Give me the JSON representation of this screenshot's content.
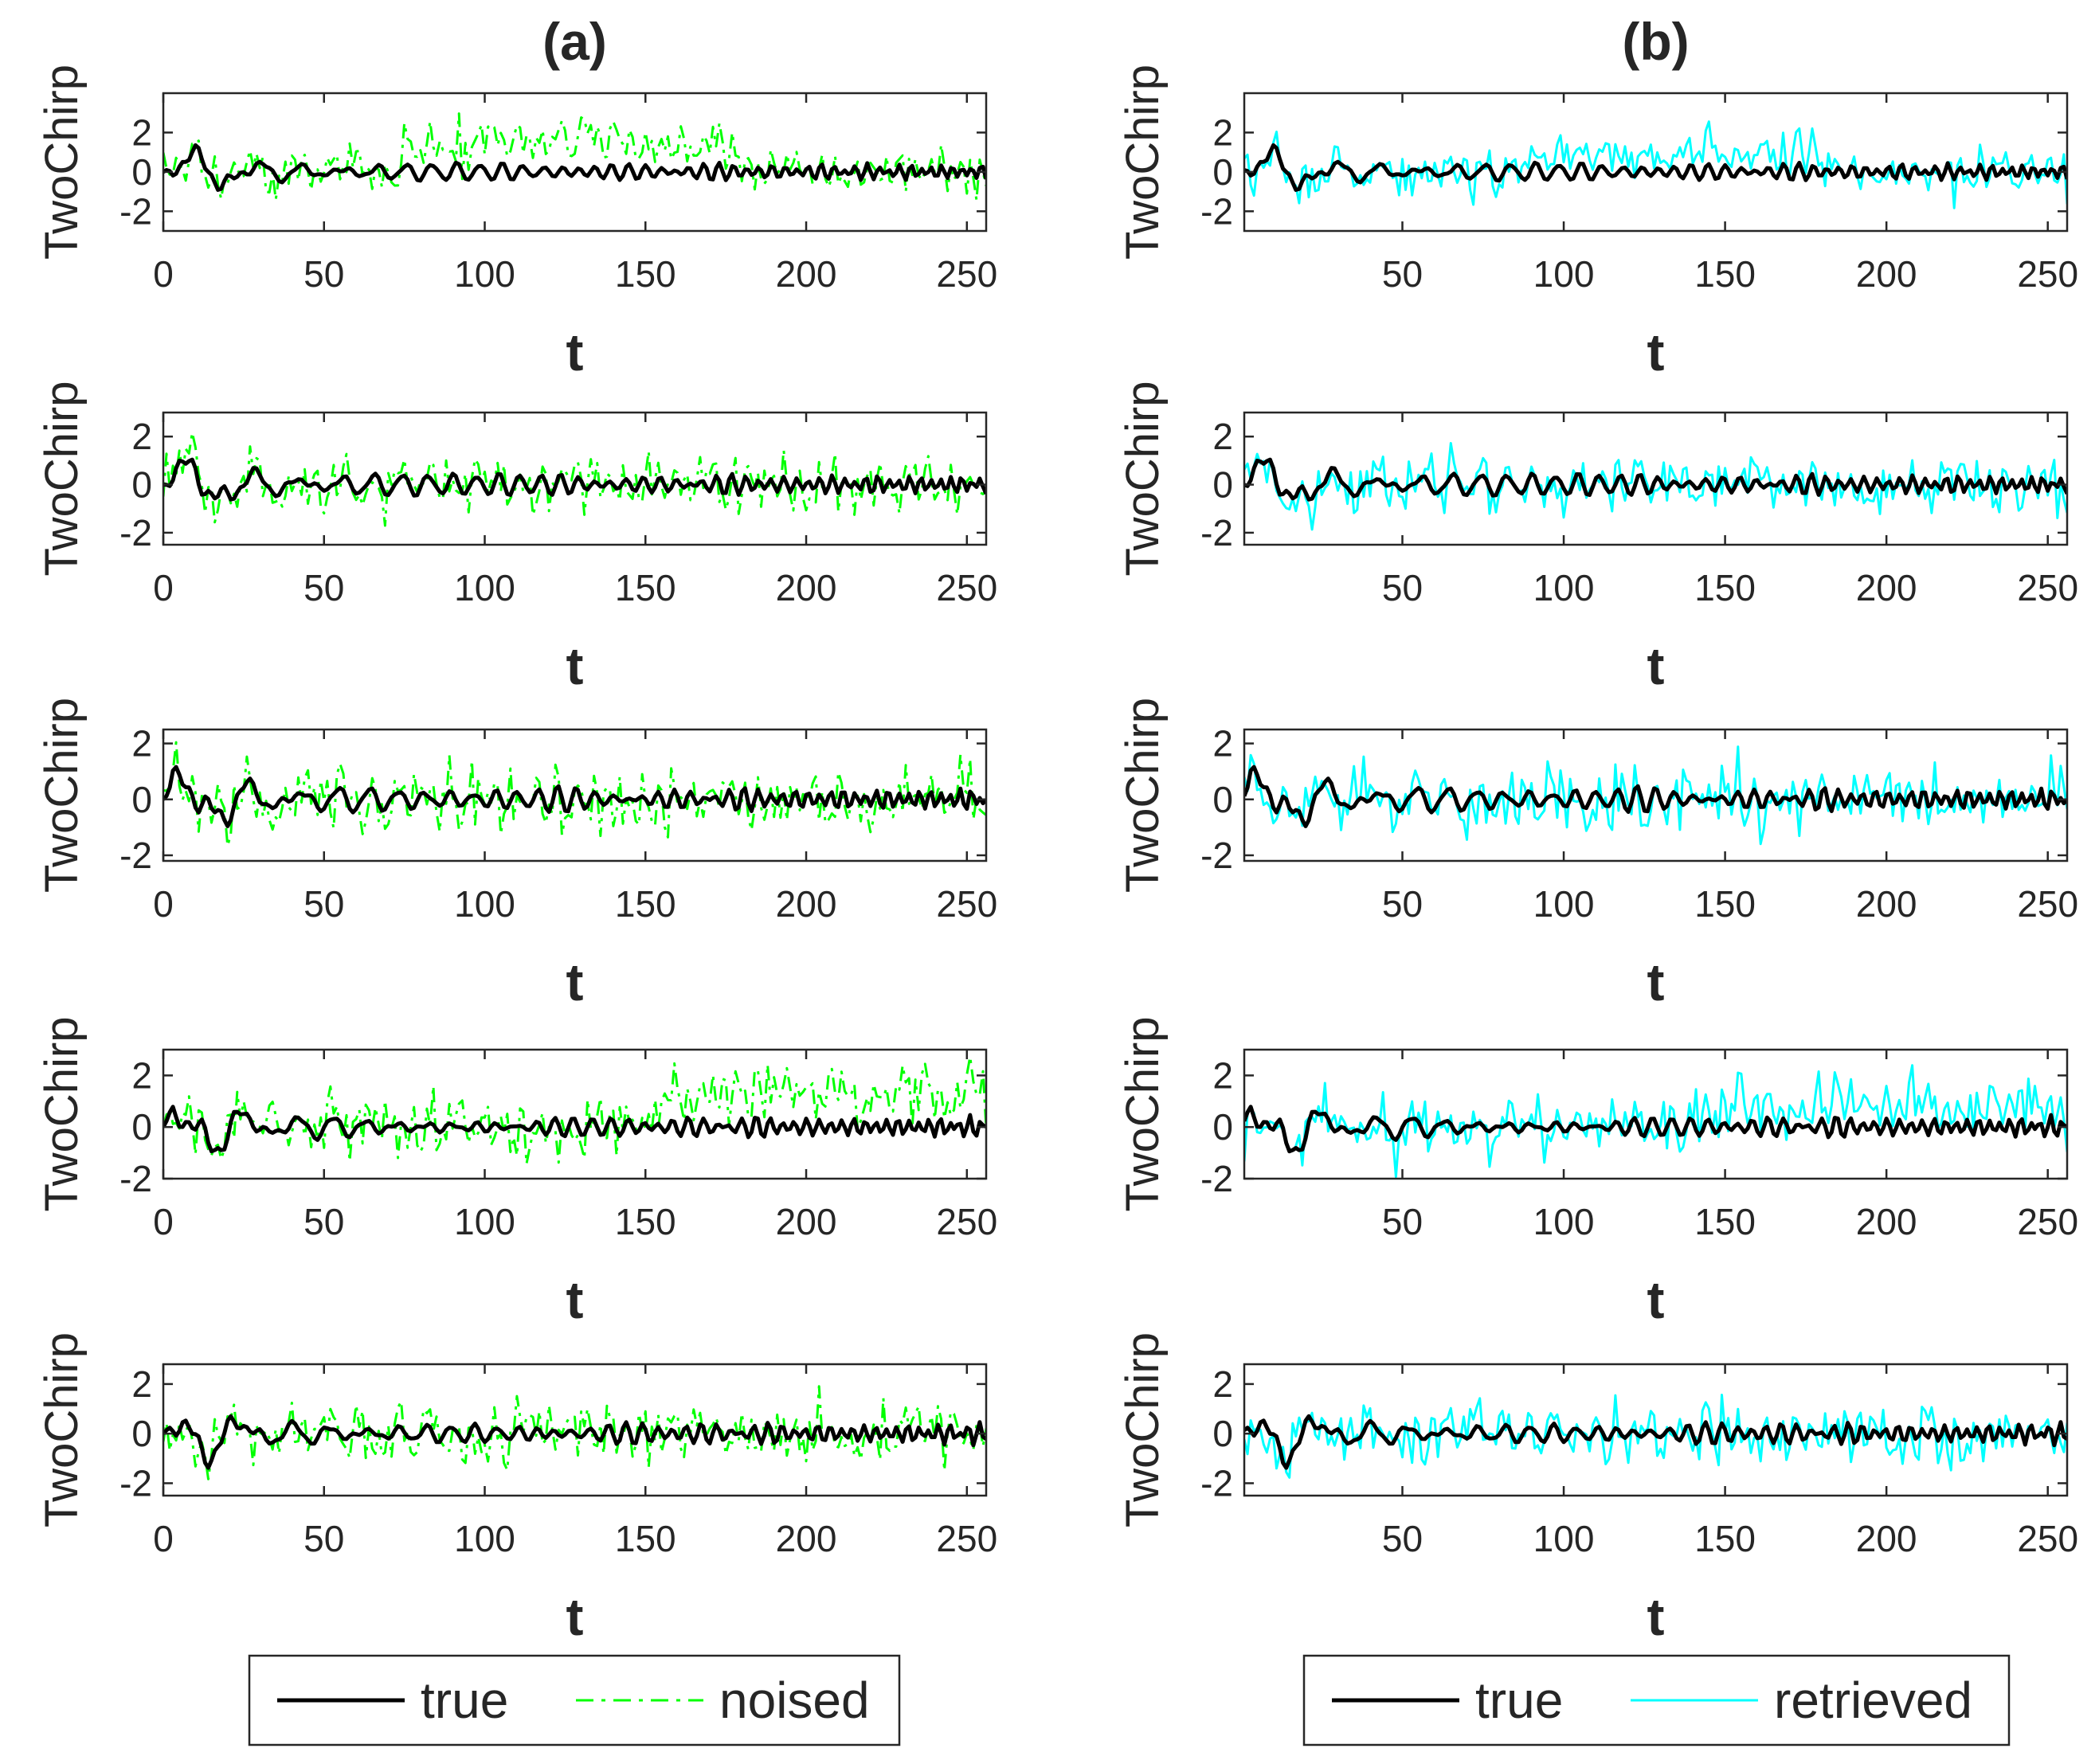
{
  "chart_data": {
    "type": "line",
    "panels": [
      {
        "title": "(a)",
        "legend": [
          {
            "name": "true",
            "color": "#000000",
            "style": "solid"
          },
          {
            "name": "noised",
            "color": "#00ff00",
            "style": "dash-dot"
          }
        ],
        "subplots": [
          {
            "ylabel": "TwoChirp",
            "xlabel": "t",
            "xlim": [
              0,
              256
            ],
            "ylim": [
              -3,
              4
            ],
            "yticks": [
              "-2",
              "0",
              "2"
            ],
            "xticks": [
              "0",
              "50",
              "100",
              "150",
              "200",
              "250"
            ],
            "true_seed": 11,
            "other_seed": 21,
            "other_offset": [
              [
                0,
                75,
                0
              ],
              [
                75,
                100,
                1.2
              ],
              [
                100,
                145,
                1.7
              ],
              [
                145,
                178,
                1.3
              ],
              [
                178,
                256,
                0
              ]
            ]
          },
          {
            "ylabel": "TwoChirp",
            "xlabel": "t",
            "xlim": [
              0,
              256
            ],
            "ylim": [
              -2.5,
              3
            ],
            "yticks": [
              "-2",
              "0",
              "2"
            ],
            "xticks": [
              "0",
              "50",
              "100",
              "150",
              "200",
              "250"
            ],
            "true_seed": 12,
            "other_seed": 22,
            "other_offset": [
              [
                0,
                256,
                0
              ]
            ]
          },
          {
            "ylabel": "TwoChirp",
            "xlabel": "t",
            "xlim": [
              0,
              256
            ],
            "ylim": [
              -2.2,
              2.5
            ],
            "yticks": [
              "-2",
              "0",
              "2"
            ],
            "xticks": [
              "0",
              "50",
              "100",
              "150",
              "200",
              "250"
            ],
            "true_seed": 13,
            "other_seed": 23,
            "other_offset": [
              [
                0,
                256,
                0
              ]
            ]
          },
          {
            "ylabel": "TwoChirp",
            "xlabel": "t",
            "xlim": [
              0,
              256
            ],
            "ylim": [
              -2,
              3
            ],
            "yticks": [
              "-2",
              "0",
              "2"
            ],
            "xticks": [
              "0",
              "50",
              "100",
              "150",
              "200",
              "250"
            ],
            "true_seed": 14,
            "other_seed": 24,
            "other_offset": [
              [
                0,
                155,
                0
              ],
              [
                155,
                256,
                1.3
              ]
            ]
          },
          {
            "ylabel": "TwoChirp",
            "xlabel": "t",
            "xlim": [
              0,
              256
            ],
            "ylim": [
              -2.5,
              2.8
            ],
            "yticks": [
              "-2",
              "0",
              "2"
            ],
            "xticks": [
              "0",
              "50",
              "100",
              "150",
              "200",
              "250"
            ],
            "true_seed": 15,
            "other_seed": 25,
            "other_offset": [
              [
                0,
                256,
                0
              ]
            ]
          }
        ]
      },
      {
        "title": "(b)",
        "legend": [
          {
            "name": "true",
            "color": "#000000",
            "style": "solid"
          },
          {
            "name": "retrieved",
            "color": "#00ffff",
            "style": "solid"
          }
        ],
        "subplots": [
          {
            "ylabel": "TwoChirp",
            "xlabel": "t",
            "xlim": [
              1,
              256
            ],
            "ylim": [
              -3,
              4
            ],
            "yticks": [
              "-2",
              "0",
              "2"
            ],
            "xticks": [
              "50",
              "100",
              "150",
              "200",
              "250"
            ],
            "true_seed": 11,
            "other_seed": 31,
            "other_offset": [
              [
                0,
                90,
                0
              ],
              [
                90,
                180,
                0.9
              ],
              [
                180,
                256,
                0
              ]
            ]
          },
          {
            "ylabel": "TwoChirp",
            "xlabel": "t",
            "xlim": [
              1,
              256
            ],
            "ylim": [
              -2.5,
              3
            ],
            "yticks": [
              "-2",
              "0",
              "2"
            ],
            "xticks": [
              "50",
              "100",
              "150",
              "200",
              "250"
            ],
            "true_seed": 12,
            "other_seed": 32,
            "other_offset": [
              [
                0,
                256,
                0
              ]
            ]
          },
          {
            "ylabel": "TwoChirp",
            "xlabel": "t",
            "xlim": [
              1,
              256
            ],
            "ylim": [
              -2.2,
              2.5
            ],
            "yticks": [
              "-2",
              "0",
              "2"
            ],
            "xticks": [
              "50",
              "100",
              "150",
              "200",
              "250"
            ],
            "true_seed": 13,
            "other_seed": 33,
            "other_offset": [
              [
                0,
                256,
                0
              ]
            ]
          },
          {
            "ylabel": "TwoChirp",
            "xlabel": "t",
            "xlim": [
              1,
              256
            ],
            "ylim": [
              -2,
              3
            ],
            "yticks": [
              "-2",
              "0",
              "2"
            ],
            "xticks": [
              "50",
              "100",
              "150",
              "200",
              "250"
            ],
            "true_seed": 14,
            "other_seed": 34,
            "other_offset": [
              [
                0,
                140,
                0
              ],
              [
                140,
                256,
                0.8
              ]
            ]
          },
          {
            "ylabel": "TwoChirp",
            "xlabel": "t",
            "xlim": [
              1,
              256
            ],
            "ylim": [
              -2.5,
              2.8
            ],
            "yticks": [
              "-2",
              "0",
              "2"
            ],
            "xticks": [
              "50",
              "100",
              "150",
              "200",
              "250"
            ],
            "true_seed": 15,
            "other_seed": 35,
            "other_offset": [
              [
                0,
                256,
                0
              ]
            ]
          }
        ]
      }
    ]
  }
}
